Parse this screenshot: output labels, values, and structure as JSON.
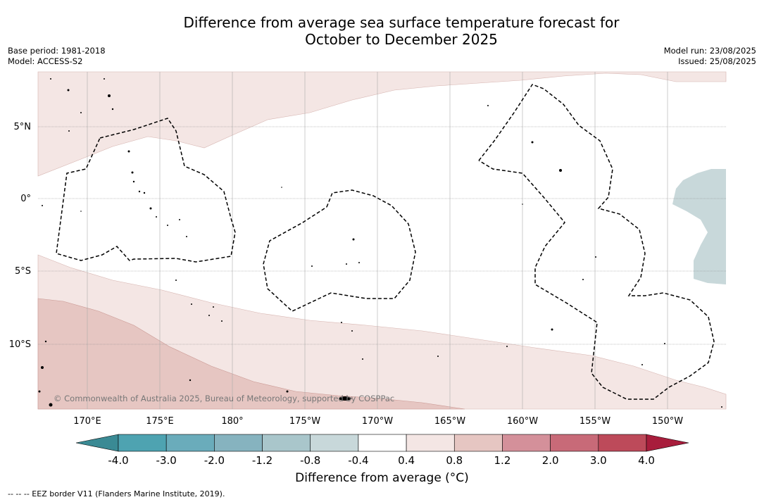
{
  "title_line1": "Difference from average sea surface temperature forecast for",
  "title_line2": "October to December 2025",
  "base_period": "Base period: 1981-2018",
  "model": "Model: ACCESS-S2",
  "model_run": "Model run: 23/08/2025",
  "issued": "Issued: 25/08/2025",
  "copyright": "© Commonwealth of Australia 2025, Bureau of Meteorology, supported by COSPPac",
  "lat_labels": [
    "5°N",
    "0°",
    "5°S",
    "10°S"
  ],
  "lon_labels": [
    "170°E",
    "175°E",
    "180°",
    "175°W",
    "170°W",
    "165°W",
    "160°W",
    "155°W",
    "150°W"
  ],
  "colorbar": {
    "title": "Difference from average (°C)",
    "ticks": [
      "-4.0",
      "-3.0",
      "-2.0",
      "-1.2",
      "-0.8",
      "-0.4",
      "0.4",
      "0.8",
      "1.2",
      "2.0",
      "3.0",
      "4.0"
    ],
    "colors": [
      "#3a8a94",
      "#4ea3b1",
      "#6aacbb",
      "#86b3bf",
      "#a9c6cb",
      "#c8d8da",
      "#ffffff",
      "#f4e6e4",
      "#e6c6c2",
      "#d4909a",
      "#c86a78",
      "#bd4a5a",
      "#a81d3c"
    ]
  },
  "footer": "--  --  -- EEZ border V11 (Flanders Marine Institute, 2019)."
}
